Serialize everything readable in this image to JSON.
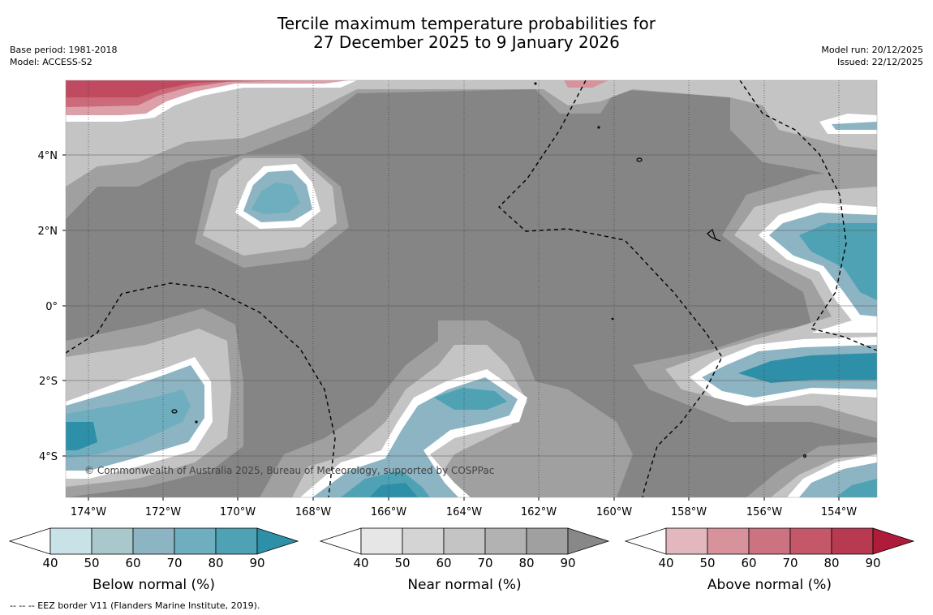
{
  "title_line1": "Tercile maximum temperature probabilities for",
  "title_line2": "27 December 2025 to 9 January 2026",
  "base_period": "Base period: 1981-2018",
  "model": "Model: ACCESS-S2",
  "model_run": "Model run: 20/12/2025",
  "issued": "Issued: 22/12/2025",
  "copyright": "© Commonwealth of Australia 2025, Bureau of Meteorology, supported by COSPPac",
  "footer": "--  --  -- EEZ border V11 (Flanders Marine Institute, 2019).",
  "lat_labels": [
    "4°N",
    "2°N",
    "0°",
    "2°S",
    "4°S"
  ],
  "lon_labels": [
    "174°W",
    "172°W",
    "170°W",
    "168°W",
    "166°W",
    "164°W",
    "162°W",
    "160°W",
    "158°W",
    "156°W",
    "154°W"
  ],
  "colorbars": [
    {
      "label": "Below normal (%)",
      "ticks": [
        "40",
        "50",
        "60",
        "70",
        "80",
        "90"
      ],
      "colors": [
        "#c8e2e8",
        "#a8c8cc",
        "#8cb4c2",
        "#6eaebe",
        "#4ea2b4",
        "#2e90a8"
      ]
    },
    {
      "label": "Near normal (%)",
      "ticks": [
        "40",
        "50",
        "60",
        "70",
        "80",
        "90"
      ],
      "colors": [
        "#e6e6e6",
        "#d4d4d4",
        "#c4c4c4",
        "#b2b2b2",
        "#a0a0a0",
        "#888888"
      ]
    },
    {
      "label": "Above normal (%)",
      "ticks": [
        "40",
        "50",
        "60",
        "70",
        "80",
        "90"
      ],
      "colors": [
        "#e2b8be",
        "#d8929c",
        "#cc7280",
        "#c45868",
        "#b83a50",
        "#ae1c3a"
      ]
    }
  ]
}
